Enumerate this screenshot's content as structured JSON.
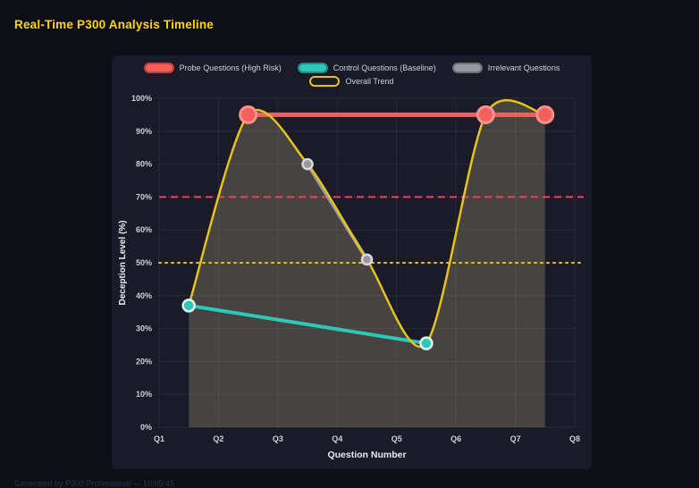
{
  "page": {
    "title": "Real-Time P300 Analysis Timeline",
    "footer": "Generated by P300 Professional — 10:05:45"
  },
  "chart_data": {
    "type": "line",
    "title": "Real-Time P300 Analysis Timeline",
    "xlabel": "Question Number",
    "ylabel": "Deception Level (%)",
    "x_ticks": [
      "Q1",
      "Q2",
      "Q3",
      "Q4",
      "Q5",
      "Q6",
      "Q7",
      "Q8"
    ],
    "x_range": [
      1,
      8
    ],
    "ylim": [
      0,
      100
    ],
    "y_tick_step": 10,
    "y_tick_suffix": "%",
    "grid": true,
    "legend_position": "top",
    "colors": {
      "panel_bg": "#1a1a28",
      "grid": "rgba(255,255,255,0.07)",
      "tick_text": "#cfcfda",
      "axis_title_text": "#ecech",
      "title_accent": "#ffd60a"
    },
    "series": [
      {
        "name": "Probe Questions (High Risk)",
        "color": "#f2605c",
        "line_width": 5,
        "smooth": false,
        "points": [
          [
            2.5,
            95
          ],
          [
            6.5,
            95
          ],
          [
            7.5,
            95
          ]
        ],
        "marker": {
          "radius": 9,
          "fill": "#f2605c",
          "stroke": "#ff918c",
          "stroke_width": 3
        },
        "pill": {
          "fill": "#f2605c",
          "border": "#c0403c"
        }
      },
      {
        "name": "Control Questions (Baseline)",
        "color": "#2fc7b9",
        "line_width": 4,
        "smooth": false,
        "points": [
          [
            1.5,
            37
          ],
          [
            5.5,
            25.5
          ]
        ],
        "marker": {
          "radius": 6.5,
          "fill": "#2fc7b9",
          "stroke": "#dff5f2",
          "stroke_width": 2.5
        },
        "pill": {
          "fill": "#2fc7b9",
          "border": "#1f8a80"
        }
      },
      {
        "name": "Irrelevant Questions",
        "color": "#97979f",
        "line_width": 4,
        "smooth": false,
        "points": [
          [
            3.5,
            80
          ],
          [
            4.5,
            51
          ]
        ],
        "marker": {
          "radius": 5.5,
          "fill": "#97979f",
          "stroke": "#d8d8de",
          "stroke_width": 2.5
        },
        "pill": {
          "fill": "#97979f",
          "border": "#6e6e78"
        }
      },
      {
        "name": "Overall Trend",
        "color": "#e5c31d",
        "line_width": 2.5,
        "smooth": true,
        "area_fill": "rgba(229,216,150,0.22)",
        "points": [
          [
            1.5,
            37
          ],
          [
            2.5,
            95
          ],
          [
            3.5,
            80
          ],
          [
            4.5,
            51
          ],
          [
            5.5,
            25.5
          ],
          [
            6.5,
            95
          ],
          [
            7.5,
            95
          ]
        ],
        "marker": {
          "radius": 0,
          "fill": "#e5c31d",
          "stroke": "#e5c31d",
          "stroke_width": 0
        },
        "pill": {
          "fill": "rgba(0,0,0,0)",
          "border": "#e5c31d"
        }
      }
    ],
    "legend_rows": [
      [
        0,
        1,
        2
      ],
      [
        3
      ]
    ],
    "thresholds": [
      {
        "value": 70,
        "color": "#f43f5e",
        "dash": "8 5",
        "width": 2,
        "linecap": "butt"
      },
      {
        "value": 50,
        "color": "#e5c31d",
        "dash": "2 5",
        "width": 2,
        "linecap": "round"
      }
    ]
  }
}
